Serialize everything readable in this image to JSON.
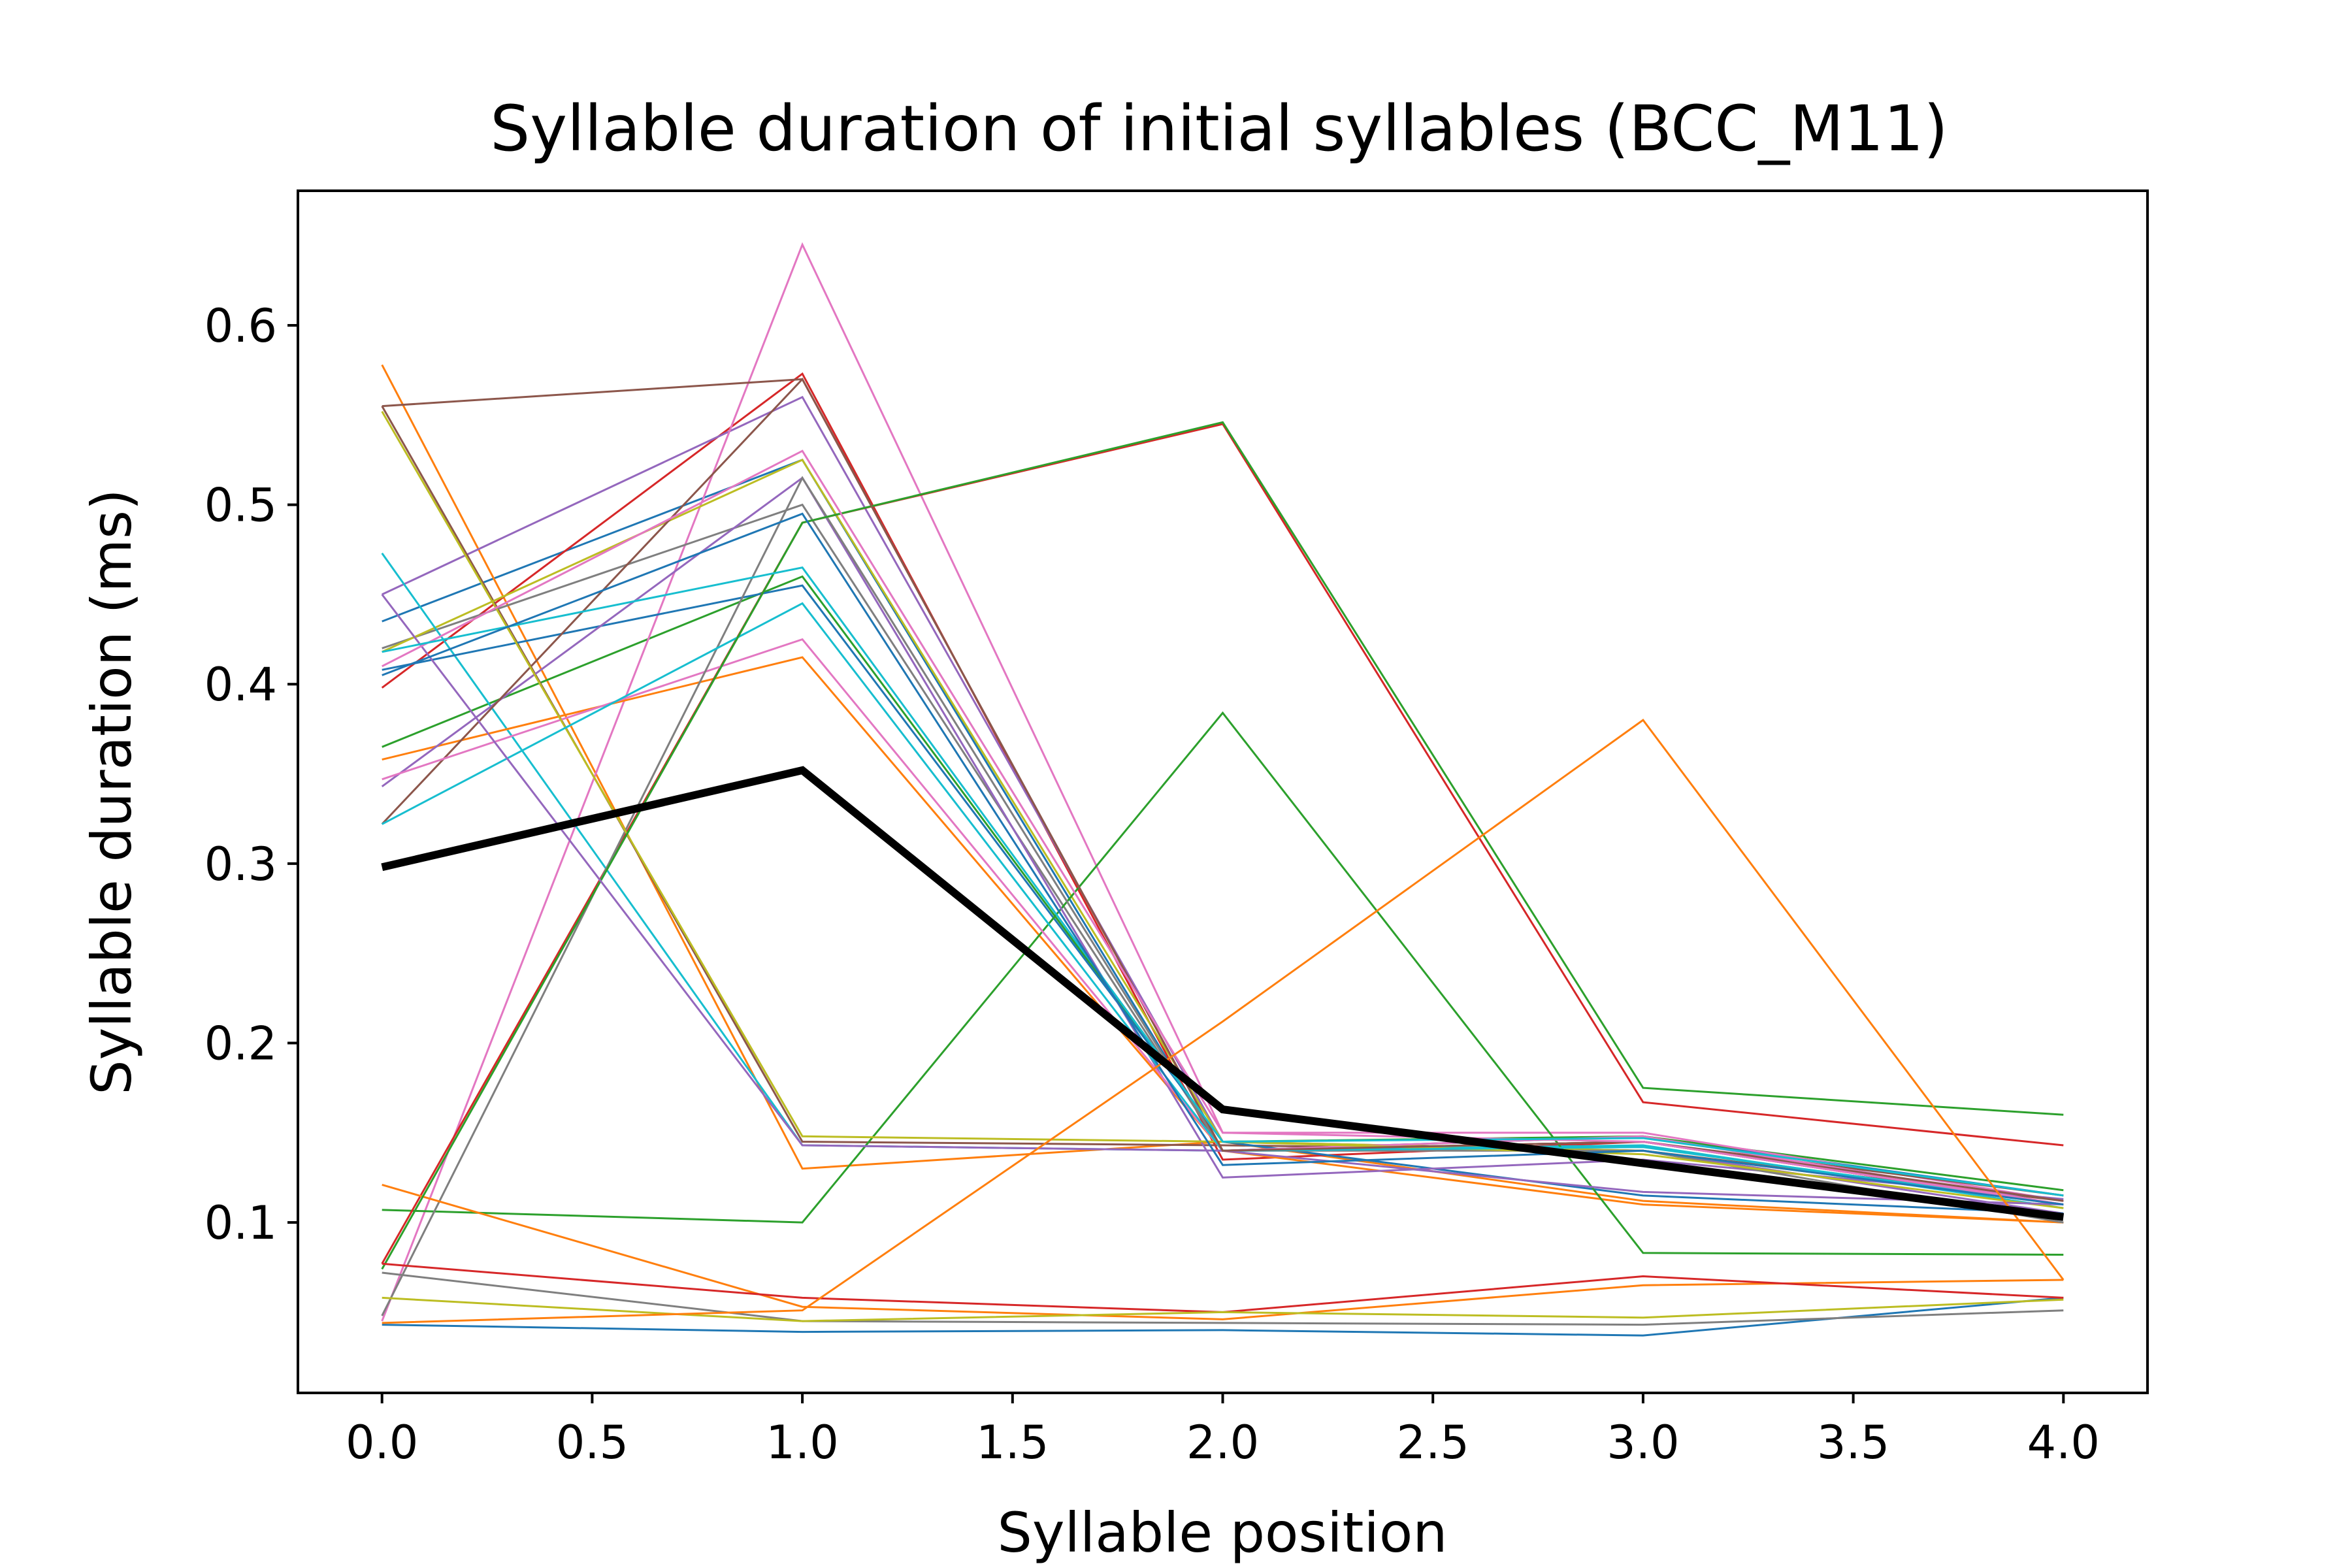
{
  "chart_data": {
    "type": "line",
    "title": "Syllable duration of initial syllables (BCC_M11)",
    "xlabel": "Syllable position",
    "ylabel": "Syllable duration (ms)",
    "xlim": [
      -0.2,
      4.2
    ],
    "ylim": [
      0.005,
      0.675
    ],
    "xticks": [
      "0.0",
      "0.5",
      "1.0",
      "1.5",
      "2.0",
      "2.5",
      "3.0",
      "3.5",
      "4.0"
    ],
    "xtick_values": [
      0,
      0.5,
      1,
      1.5,
      2,
      2.5,
      3,
      3.5,
      4
    ],
    "yticks": [
      "0.1",
      "0.2",
      "0.3",
      "0.4",
      "0.5",
      "0.6"
    ],
    "ytick_values": [
      0.1,
      0.2,
      0.3,
      0.4,
      0.5,
      0.6
    ],
    "grid": false,
    "legend": false,
    "x": [
      0,
      1,
      2,
      3,
      4
    ],
    "series": [
      {
        "color": "#1f77b4",
        "values": [
          0.435,
          0.525,
          0.14,
          0.148,
          0.115
        ]
      },
      {
        "color": "#ff7f0e",
        "values": [
          0.578,
          0.13,
          0.145,
          0.112,
          0.1
        ]
      },
      {
        "color": "#2ca02c",
        "values": [
          0.365,
          0.46,
          0.145,
          0.148,
          0.118
        ]
      },
      {
        "color": "#d62728",
        "values": [
          0.398,
          0.573,
          0.135,
          0.145,
          0.11
        ]
      },
      {
        "color": "#9467bd",
        "values": [
          0.45,
          0.56,
          0.145,
          0.14,
          0.105
        ]
      },
      {
        "color": "#8c564b",
        "values": [
          0.555,
          0.145,
          0.143,
          0.14,
          0.112
        ]
      },
      {
        "color": "#e377c2",
        "values": [
          0.045,
          0.645,
          0.15,
          0.15,
          0.112
        ]
      },
      {
        "color": "#7f7f7f",
        "values": [
          0.42,
          0.5,
          0.14,
          0.145,
          0.11
        ]
      },
      {
        "color": "#bcbd22",
        "values": [
          0.418,
          0.525,
          0.145,
          0.14,
          0.11
        ]
      },
      {
        "color": "#17becf",
        "values": [
          0.473,
          0.143,
          0.14,
          0.143,
          0.108
        ]
      },
      {
        "color": "#1f77b4",
        "values": [
          0.408,
          0.455,
          0.145,
          0.115,
          0.105
        ]
      },
      {
        "color": "#ff7f0e",
        "values": [
          0.358,
          0.415,
          0.14,
          0.11,
          0.1
        ]
      },
      {
        "color": "#2ca02c",
        "values": [
          0.107,
          0.1,
          0.384,
          0.083,
          0.082
        ]
      },
      {
        "color": "#d62728",
        "values": [
          0.077,
          0.49,
          0.545,
          0.167,
          0.143
        ]
      },
      {
        "color": "#9467bd",
        "values": [
          0.343,
          0.515,
          0.125,
          0.135,
          0.113
        ]
      },
      {
        "color": "#8c564b",
        "values": [
          0.322,
          0.57,
          0.14,
          0.145,
          0.115
        ]
      },
      {
        "color": "#e377c2",
        "values": [
          0.347,
          0.425,
          0.14,
          0.148,
          0.11
        ]
      },
      {
        "color": "#7f7f7f",
        "values": [
          0.048,
          0.515,
          0.14,
          0.14,
          0.1
        ]
      },
      {
        "color": "#bcbd22",
        "values": [
          0.552,
          0.148,
          0.145,
          0.138,
          0.108
        ]
      },
      {
        "color": "#17becf",
        "values": [
          0.322,
          0.445,
          0.14,
          0.142,
          0.11
        ]
      },
      {
        "color": "#1f77b4",
        "values": [
          0.043,
          0.039,
          0.04,
          0.037,
          0.058
        ]
      },
      {
        "color": "#ff7f0e",
        "values": [
          0.121,
          0.053,
          0.046,
          0.065,
          0.068
        ]
      },
      {
        "color": "#2ca02c",
        "values": [
          0.074,
          0.49,
          0.546,
          0.175,
          0.16
        ]
      },
      {
        "color": "#d62728",
        "values": [
          0.077,
          0.058,
          0.05,
          0.07,
          0.058
        ]
      },
      {
        "color": "#9467bd",
        "values": [
          0.45,
          0.143,
          0.14,
          0.117,
          0.11
        ]
      },
      {
        "color": "#8c564b",
        "values": [
          0.555,
          0.57,
          0.14,
          0.145,
          0.112
        ]
      },
      {
        "color": "#e377c2",
        "values": [
          0.41,
          0.53,
          0.15,
          0.145,
          0.11
        ]
      },
      {
        "color": "#7f7f7f",
        "values": [
          0.072,
          0.045,
          0.044,
          0.043,
          0.051
        ]
      },
      {
        "color": "#bcbd22",
        "values": [
          0.058,
          0.045,
          0.05,
          0.047,
          0.057
        ]
      },
      {
        "color": "#17becf",
        "values": [
          0.418,
          0.465,
          0.145,
          0.147,
          0.115
        ]
      },
      {
        "color": "#1f77b4",
        "values": [
          0.405,
          0.495,
          0.132,
          0.14,
          0.11
        ]
      },
      {
        "color": "#ff7f0e",
        "values": [
          0.044,
          0.051,
          0.212,
          0.38,
          0.068
        ]
      },
      {
        "color": "#000000",
        "bold": true,
        "values": [
          0.298,
          0.352,
          0.163,
          0.133,
          0.103
        ]
      }
    ]
  }
}
